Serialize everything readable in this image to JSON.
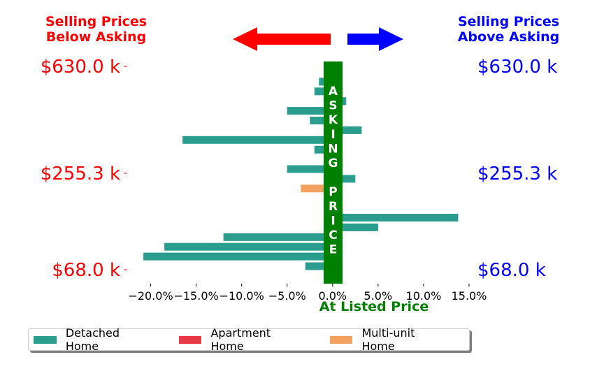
{
  "header": {
    "below_title": "Selling Prices\nBelow Asking",
    "above_title": "Selling Prices\nAbove Asking"
  },
  "colors": {
    "below": "#ff0000",
    "above": "#0000ff",
    "asking_bar": "#008000",
    "detached": "#2a9d8f",
    "apartment": "#e63946",
    "multi_unit": "#f4a261"
  },
  "chart_data": {
    "type": "bar",
    "orientation": "horizontal",
    "xlabel": "At Listed Price",
    "xlim": [
      -22.5,
      15.0
    ],
    "xticks": [
      -20,
      -15,
      -10,
      -5,
      0,
      5,
      10,
      15
    ],
    "xtick_labels": [
      "−20.0%",
      "−15.0%",
      "−10.0%",
      "−5.0%",
      "0.0%",
      "5.0%",
      "10.0%",
      "15.0%"
    ],
    "left_ytick_labels": [
      "$630.0 k",
      "$255.3 k",
      "$68.0 k"
    ],
    "right_ytick_labels": [
      "$630.0 k",
      "$255.3 k",
      "$68.0 k"
    ],
    "asking_label": [
      "A",
      "S",
      "K",
      "I",
      "N",
      "G",
      "",
      "P",
      "R",
      "I",
      "C",
      "E"
    ],
    "legend_placement": "bottom",
    "grid": false,
    "series": [
      {
        "name": "Detached Home",
        "color": "#2a9d8f"
      },
      {
        "name": "Apartment Home",
        "color": "#e63946"
      },
      {
        "name": "Multi-unit Home",
        "color": "#f4a261"
      }
    ],
    "bars": [
      {
        "series": "Detached Home",
        "value": 1.0
      },
      {
        "series": "Detached Home",
        "value": -1.5
      },
      {
        "series": "Detached Home",
        "value": -2.0
      },
      {
        "series": "Detached Home",
        "value": 1.5
      },
      {
        "series": "Detached Home",
        "value": -5.0
      },
      {
        "series": "Detached Home",
        "value": -2.5
      },
      {
        "series": "Detached Home",
        "value": 3.2
      },
      {
        "series": "Detached Home",
        "value": -16.5
      },
      {
        "series": "Detached Home",
        "value": -2.0
      },
      {
        "series": "Detached Home",
        "value": 1.0
      },
      {
        "series": "Detached Home",
        "value": -5.0
      },
      {
        "series": "Detached Home",
        "value": 2.5
      },
      {
        "series": "Multi-unit Home",
        "value": -3.5
      },
      {
        "series": "Detached Home",
        "value": 1.0
      },
      {
        "series": "Apartment Home",
        "value": 1.0
      },
      {
        "series": "Detached Home",
        "value": 13.8
      },
      {
        "series": "Detached Home",
        "value": 5.0
      },
      {
        "series": "Detached Home",
        "value": -12.0
      },
      {
        "series": "Detached Home",
        "value": -18.5
      },
      {
        "series": "Detached Home",
        "value": -20.8
      },
      {
        "series": "Detached Home",
        "value": -3.0
      }
    ]
  }
}
